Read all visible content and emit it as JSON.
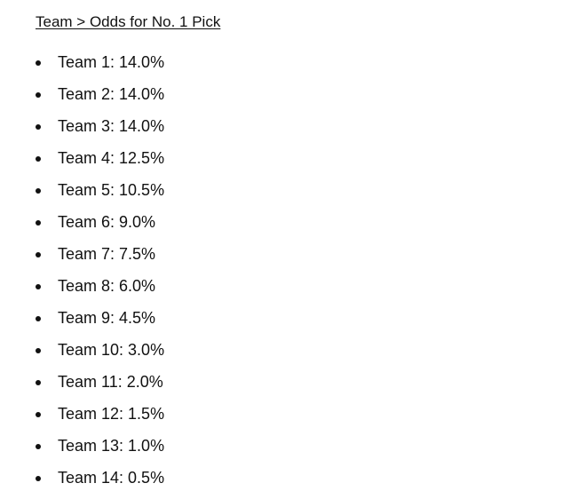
{
  "heading": "Team > Odds for No. 1 Pick",
  "items": [
    "Team 1: 14.0%",
    "Team 2: 14.0%",
    "Team 3: 14.0%",
    "Team 4: 12.5%",
    "Team 5: 10.5%",
    "Team 6: 9.0%",
    "Team 7: 7.5%",
    "Team 8: 6.0%",
    "Team 9: 4.5%",
    "Team 10: 3.0%",
    "Team 11: 2.0%",
    "Team 12: 1.5%",
    "Team 13: 1.0%",
    "Team 14: 0.5%"
  ]
}
